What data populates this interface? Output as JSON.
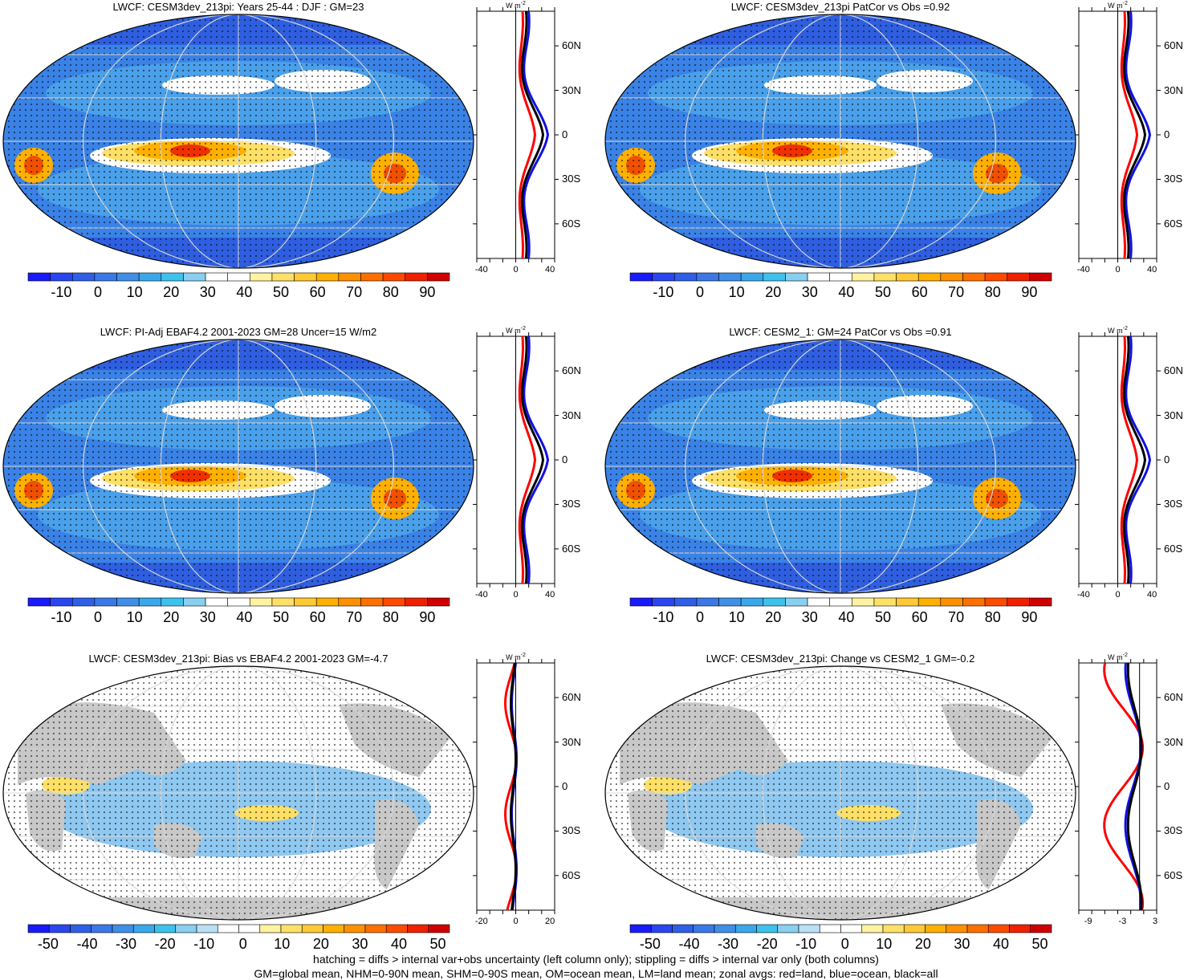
{
  "panels": [
    {
      "title": "LWCF: CESM3dev_213pi: Years 25-44 : DJF : GM=23",
      "col": 0,
      "row": 0,
      "kind": "mean"
    },
    {
      "title": "LWCF: CESM3dev_213pi PatCor vs Obs =0.92",
      "col": 1,
      "row": 0,
      "kind": "mean"
    },
    {
      "title": "LWCF: PI-Adj EBAF4.2 2001-2023 GM=28 Uncer=15 W/m2",
      "col": 0,
      "row": 1,
      "kind": "mean"
    },
    {
      "title": "LWCF: CESM2_1: GM=24 PatCor vs Obs =0.91",
      "col": 1,
      "row": 1,
      "kind": "mean"
    },
    {
      "title": "LWCF: CESM3dev_213pi: Bias vs EBAF4.2 2001-2023 GM=-4.7",
      "col": 0,
      "row": 2,
      "kind": "diff"
    },
    {
      "title": "LWCF: CESM3dev_213pi: Change vs CESM2_1 GM=-0.2",
      "col": 1,
      "row": 2,
      "kind": "diff"
    }
  ],
  "colorbars": {
    "mean_labels": [
      "-10",
      "0",
      "10",
      "20",
      "30",
      "40",
      "50",
      "60",
      "70",
      "80",
      "90"
    ],
    "diff_labels": [
      "-50",
      "-40",
      "-30",
      "-20",
      "-10",
      "0",
      "10",
      "20",
      "30",
      "40",
      "50"
    ],
    "colors": [
      "#1a1aff",
      "#2a46f0",
      "#2f5fe8",
      "#3a78e8",
      "#3f8fe9",
      "#38a8ea",
      "#3cc2ee",
      "#88cff0",
      "#ffffff",
      "#ffffff",
      "#fff2a0",
      "#ffe066",
      "#ffc933",
      "#ffb000",
      "#ff9000",
      "#ff6f00",
      "#ff4a00",
      "#f02000",
      "#d00000"
    ],
    "diff_colors": [
      "#1a1aff",
      "#2a46f0",
      "#2f5fe8",
      "#3a78e8",
      "#3f8fe9",
      "#38a8ea",
      "#3cc2ee",
      "#88cff0",
      "#b9e0f5",
      "#ffffff",
      "#ffffff",
      "#fff2a0",
      "#ffe066",
      "#ffc933",
      "#ffb000",
      "#ff9000",
      "#ff6f00",
      "#ff4a00",
      "#f02000",
      "#d00000"
    ]
  },
  "zonal": {
    "unit_label": "W m",
    "unit_exp": "-2",
    "lat_labels": [
      "60N",
      "30N",
      "0",
      "30S",
      "60S"
    ],
    "mean_x_ticks": [
      "-40",
      "0",
      "40"
    ],
    "bias_x_ticks": [
      "-20",
      "0",
      "20"
    ],
    "change_x_ticks": [
      "-9",
      "-3",
      "3"
    ]
  },
  "legend_colors": {
    "land": "#ff0000",
    "ocean": "#1010e0",
    "all": "#000000"
  },
  "footer": {
    "line1": "hatching = diffs > internal var+obs uncertainty (left column only); stippling = diffs > internal var only (both columns)",
    "line2": "GM=global mean, NHM=0-90N mean, SHM=0-90S mean, OM=ocean mean, LM=land mean; zonal avgs: red=land, blue=ocean, black=all"
  }
}
